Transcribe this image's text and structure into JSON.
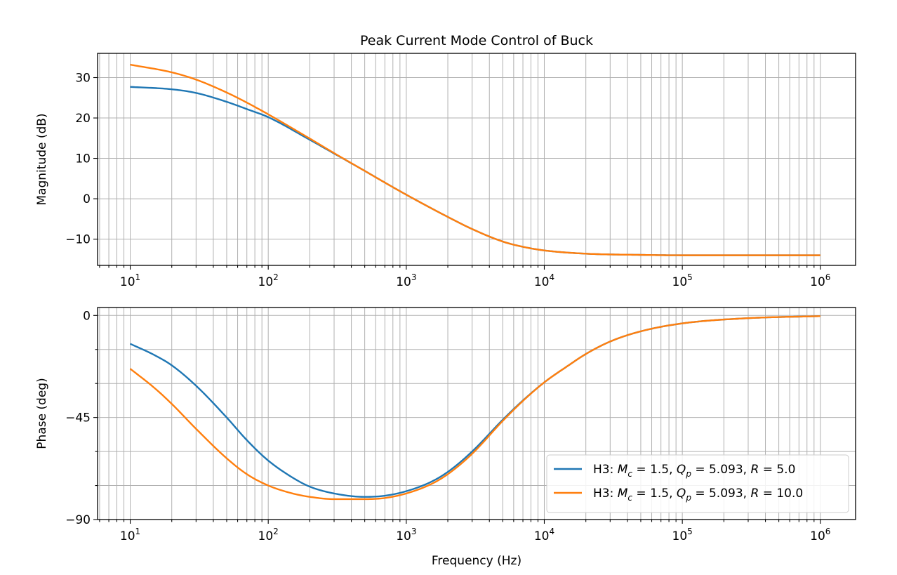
{
  "chart_data": [
    {
      "type": "line",
      "title": "Peak Current Mode Control of Buck",
      "xlabel": "",
      "ylabel": "Magnitude (dB)",
      "xscale": "log",
      "xlim": [
        5.8,
        1800000
      ],
      "ylim": [
        -16.5,
        36
      ],
      "grid": true,
      "x_ticks": [
        {
          "value": 10,
          "base": "10",
          "exp": "1"
        },
        {
          "value": 100,
          "base": "10",
          "exp": "2"
        },
        {
          "value": 1000,
          "base": "10",
          "exp": "3"
        },
        {
          "value": 10000,
          "base": "10",
          "exp": "4"
        },
        {
          "value": 100000,
          "base": "10",
          "exp": "5"
        },
        {
          "value": 1000000,
          "base": "10",
          "exp": "6"
        }
      ],
      "y_ticks": [
        {
          "value": 30,
          "label": "30"
        },
        {
          "value": 20,
          "label": "20"
        },
        {
          "value": 10,
          "label": "10"
        },
        {
          "value": 0,
          "label": "0"
        },
        {
          "value": -10,
          "label": "−10"
        }
      ],
      "series": [
        {
          "color": "#1f77b4",
          "x": [
            10,
            20,
            30,
            50,
            70,
            100,
            200,
            300,
            500,
            700,
            1000,
            2000,
            3000,
            5000,
            7000,
            10000,
            20000,
            50000,
            100000,
            1000000
          ],
          "y": [
            27.7,
            27.1,
            26.2,
            24.0,
            22.2,
            20.2,
            14.6,
            11.2,
            6.9,
            4.0,
            1.0,
            -4.5,
            -7.5,
            -10.6,
            -11.9,
            -12.8,
            -13.6,
            -13.9,
            -14.0,
            -14.0
          ]
        },
        {
          "color": "#ff7f0e",
          "x": [
            10,
            20,
            30,
            50,
            70,
            100,
            200,
            300,
            500,
            700,
            1000,
            2000,
            3000,
            5000,
            7000,
            10000,
            20000,
            50000,
            100000,
            1000000
          ],
          "y": [
            33.2,
            31.3,
            29.5,
            26.3,
            23.8,
            20.9,
            14.9,
            11.3,
            6.9,
            4.0,
            1.0,
            -4.5,
            -7.5,
            -10.6,
            -11.9,
            -12.8,
            -13.6,
            -13.9,
            -14.0,
            -14.0
          ]
        }
      ]
    },
    {
      "type": "line",
      "title": "",
      "xlabel": "Frequency (Hz)",
      "ylabel": "Phase (deg)",
      "xscale": "log",
      "xlim": [
        5.8,
        1800000
      ],
      "ylim": [
        -90,
        3.5
      ],
      "grid": true,
      "legend_location": "lower-right",
      "x_ticks": [
        {
          "value": 10,
          "base": "10",
          "exp": "1"
        },
        {
          "value": 100,
          "base": "10",
          "exp": "2"
        },
        {
          "value": 1000,
          "base": "10",
          "exp": "3"
        },
        {
          "value": 10000,
          "base": "10",
          "exp": "4"
        },
        {
          "value": 100000,
          "base": "10",
          "exp": "5"
        },
        {
          "value": 1000000,
          "base": "10",
          "exp": "6"
        }
      ],
      "y_ticks": [
        {
          "value": 0,
          "label": "0"
        },
        {
          "value": -45,
          "label": "−45"
        },
        {
          "value": -90,
          "label": "−90"
        }
      ],
      "y_minor_ticks": [
        -15,
        -30,
        -60,
        -75
      ],
      "series": [
        {
          "color": "#1f77b4",
          "legend_prefix": "H3: ",
          "legend_parts": [
            {
              "var": "M",
              "sub": "c",
              "val": "1.5"
            },
            {
              "var": "Q",
              "sub": "p",
              "val": "5.093"
            },
            {
              "var": "R",
              "sub": "",
              "val": "5.0"
            }
          ],
          "x": [
            10,
            15,
            20,
            30,
            50,
            70,
            100,
            150,
            200,
            300,
            500,
            700,
            1000,
            1500,
            2000,
            3000,
            5000,
            7000,
            10000,
            15000,
            20000,
            30000,
            50000,
            100000,
            300000,
            1000000
          ],
          "y": [
            -12.5,
            -17.5,
            -22.0,
            -31.0,
            -45.0,
            -55.0,
            -64.0,
            -71.5,
            -75.5,
            -78.5,
            -80.0,
            -79.5,
            -77.5,
            -73.5,
            -69.0,
            -60.0,
            -46.0,
            -37.5,
            -29.5,
            -22.0,
            -17.0,
            -11.5,
            -7.0,
            -3.5,
            -1.2,
            -0.3
          ]
        },
        {
          "color": "#ff7f0e",
          "legend_prefix": "H3: ",
          "legend_parts": [
            {
              "var": "M",
              "sub": "c",
              "val": "1.5"
            },
            {
              "var": "Q",
              "sub": "p",
              "val": "5.093"
            },
            {
              "var": "R",
              "sub": "",
              "val": "10.0"
            }
          ],
          "x": [
            10,
            15,
            20,
            30,
            50,
            70,
            100,
            150,
            200,
            300,
            500,
            700,
            1000,
            1500,
            2000,
            3000,
            5000,
            7000,
            10000,
            15000,
            20000,
            30000,
            50000,
            100000,
            300000,
            1000000
          ],
          "y": [
            -23.5,
            -32.0,
            -39.0,
            -50.0,
            -63.0,
            -70.0,
            -75.0,
            -78.5,
            -80.0,
            -81.0,
            -81.0,
            -80.5,
            -78.5,
            -74.5,
            -70.0,
            -61.0,
            -46.5,
            -37.7,
            -29.5,
            -22.0,
            -17.0,
            -11.5,
            -7.0,
            -3.5,
            -1.2,
            -0.3
          ]
        }
      ]
    }
  ]
}
